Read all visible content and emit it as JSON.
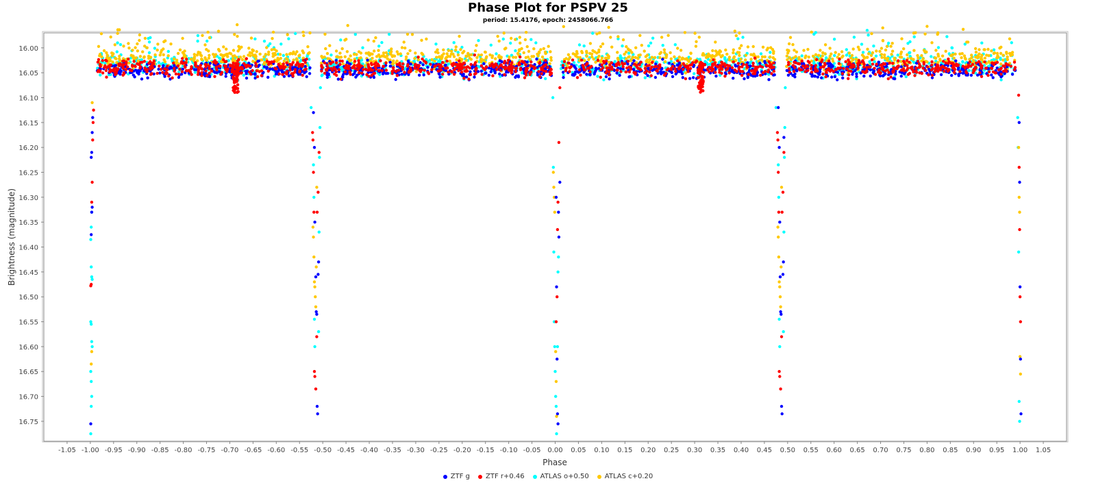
{
  "chart_data": {
    "type": "scatter",
    "title": "Phase Plot for PSPV 25",
    "subtitle": "period: 15.4176, epoch: 2458066.766",
    "xlabel": "Phase",
    "ylabel": "Brightness (magnitude)",
    "xlim": [
      -1.1,
      1.1
    ],
    "ylim": [
      15.97,
      16.79
    ],
    "y_inverted": true,
    "grid": false,
    "legend_position": "bottom",
    "x_ticks": [
      "-1.05",
      "-1.00",
      "-0.95",
      "-0.90",
      "-0.85",
      "-0.80",
      "-0.75",
      "-0.70",
      "-0.65",
      "-0.60",
      "-0.55",
      "-0.50",
      "-0.45",
      "-0.40",
      "-0.35",
      "-0.30",
      "-0.25",
      "-0.20",
      "-0.15",
      "-0.10",
      "-0.05",
      "0.00",
      "0.05",
      "0.10",
      "0.15",
      "0.20",
      "0.25",
      "0.30",
      "0.35",
      "0.40",
      "0.45",
      "0.50",
      "0.55",
      "0.60",
      "0.65",
      "0.70",
      "0.75",
      "0.80",
      "0.85",
      "0.90",
      "0.95",
      "1.00",
      "1.05"
    ],
    "y_ticks": [
      "16.00",
      "16.05",
      "16.10",
      "16.15",
      "16.20",
      "16.25",
      "16.30",
      "16.35",
      "16.40",
      "16.45",
      "16.50",
      "16.55",
      "16.60",
      "16.65",
      "16.70",
      "16.75"
    ],
    "series": [
      {
        "name": "ZTF g",
        "color": "#0000ff",
        "baseline": 16.045,
        "eclipse_points": [
          [
            -0.998,
            16.22
          ],
          [
            -0.997,
            16.21
          ],
          [
            -0.996,
            16.17
          ],
          [
            -0.995,
            16.14
          ],
          [
            -0.996,
            16.32
          ],
          [
            -0.997,
            16.33
          ],
          [
            -0.998,
            16.375
          ],
          [
            -0.999,
            16.755
          ],
          [
            -0.52,
            16.13
          ],
          [
            -0.518,
            16.2
          ],
          [
            -0.517,
            16.35
          ],
          [
            -0.515,
            16.46
          ],
          [
            -0.514,
            16.53
          ],
          [
            -0.513,
            16.535
          ],
          [
            -0.512,
            16.72
          ],
          [
            -0.511,
            16.735
          ],
          [
            -0.51,
            16.455
          ],
          [
            -0.509,
            16.43
          ],
          [
            0.002,
            16.3
          ],
          [
            0.003,
            16.48
          ],
          [
            0.004,
            16.625
          ],
          [
            0.005,
            16.735
          ],
          [
            0.006,
            16.755
          ],
          [
            0.007,
            16.33
          ],
          [
            0.008,
            16.38
          ],
          [
            0.01,
            16.27
          ],
          [
            0.48,
            16.12
          ],
          [
            0.482,
            16.2
          ],
          [
            0.483,
            16.35
          ],
          [
            0.484,
            16.46
          ],
          [
            0.485,
            16.53
          ],
          [
            0.486,
            16.535
          ],
          [
            0.487,
            16.72
          ],
          [
            0.488,
            16.735
          ],
          [
            0.49,
            16.455
          ],
          [
            0.491,
            16.43
          ],
          [
            0.492,
            16.18
          ],
          [
            0.998,
            16.15
          ],
          [
            0.999,
            16.27
          ],
          [
            1.0,
            16.48
          ],
          [
            1.001,
            16.625
          ],
          [
            1.002,
            16.735
          ]
        ]
      },
      {
        "name": "ZTF r+0.46",
        "color": "#ff0000",
        "baseline": 16.04,
        "eclipse_points": [
          [
            -0.993,
            16.125
          ],
          [
            -0.994,
            16.15
          ],
          [
            -0.995,
            16.185
          ],
          [
            -0.996,
            16.27
          ],
          [
            -0.997,
            16.31
          ],
          [
            -0.998,
            16.475
          ],
          [
            -0.999,
            16.478
          ],
          [
            -0.522,
            16.17
          ],
          [
            -0.521,
            16.185
          ],
          [
            -0.52,
            16.25
          ],
          [
            -0.519,
            16.33
          ],
          [
            -0.518,
            16.65
          ],
          [
            -0.517,
            16.66
          ],
          [
            -0.515,
            16.685
          ],
          [
            -0.513,
            16.58
          ],
          [
            -0.512,
            16.33
          ],
          [
            -0.51,
            16.29
          ],
          [
            -0.508,
            16.21
          ],
          [
            0.002,
            16.55
          ],
          [
            0.004,
            16.5
          ],
          [
            0.005,
            16.365
          ],
          [
            0.006,
            16.31
          ],
          [
            0.008,
            16.19
          ],
          [
            0.01,
            16.08
          ],
          [
            0.478,
            16.17
          ],
          [
            0.479,
            16.185
          ],
          [
            0.48,
            16.25
          ],
          [
            0.481,
            16.33
          ],
          [
            0.482,
            16.65
          ],
          [
            0.483,
            16.66
          ],
          [
            0.485,
            16.685
          ],
          [
            0.487,
            16.58
          ],
          [
            0.488,
            16.33
          ],
          [
            0.49,
            16.29
          ],
          [
            0.492,
            16.21
          ],
          [
            0.997,
            16.095
          ],
          [
            0.998,
            16.24
          ],
          [
            0.999,
            16.365
          ],
          [
            1.0,
            16.5
          ],
          [
            1.001,
            16.55
          ]
        ]
      },
      {
        "name": "ATLAS o+0.50",
        "color": "#00ffff",
        "baseline": 16.035,
        "eclipse_points": [
          [
            -0.997,
            16.33
          ],
          [
            -0.998,
            16.36
          ],
          [
            -0.999,
            16.385
          ],
          [
            -0.998,
            16.44
          ],
          [
            -0.997,
            16.46
          ],
          [
            -0.996,
            16.465
          ],
          [
            -0.999,
            16.55
          ],
          [
            -0.998,
            16.555
          ],
          [
            -0.997,
            16.59
          ],
          [
            -0.996,
            16.6
          ],
          [
            -0.999,
            16.65
          ],
          [
            -0.998,
            16.67
          ],
          [
            -0.997,
            16.7
          ],
          [
            -0.998,
            16.72
          ],
          [
            -0.999,
            16.775
          ],
          [
            -0.525,
            16.12
          ],
          [
            -0.52,
            16.235
          ],
          [
            -0.519,
            16.3
          ],
          [
            -0.518,
            16.545
          ],
          [
            -0.517,
            16.6
          ],
          [
            -0.508,
            16.37
          ],
          [
            -0.507,
            16.22
          ],
          [
            -0.506,
            16.16
          ],
          [
            -0.505,
            16.08
          ],
          [
            -0.509,
            16.57
          ],
          [
            -0.005,
            16.1
          ],
          [
            -0.004,
            16.24
          ],
          [
            -0.003,
            16.41
          ],
          [
            -0.002,
            16.55
          ],
          [
            -0.001,
            16.6
          ],
          [
            0.0,
            16.65
          ],
          [
            0.001,
            16.7
          ],
          [
            0.002,
            16.72
          ],
          [
            0.003,
            16.775
          ],
          [
            0.005,
            16.6
          ],
          [
            0.006,
            16.45
          ],
          [
            0.007,
            16.42
          ],
          [
            0.475,
            16.12
          ],
          [
            0.48,
            16.235
          ],
          [
            0.481,
            16.3
          ],
          [
            0.482,
            16.545
          ],
          [
            0.483,
            16.6
          ],
          [
            0.492,
            16.37
          ],
          [
            0.493,
            16.22
          ],
          [
            0.494,
            16.16
          ],
          [
            0.495,
            16.08
          ],
          [
            0.491,
            16.57
          ],
          [
            0.995,
            16.14
          ],
          [
            0.996,
            16.2
          ],
          [
            0.997,
            16.41
          ],
          [
            0.998,
            16.71
          ],
          [
            0.999,
            16.75
          ]
        ]
      },
      {
        "name": "ATLAS c+0.20",
        "color": "#ffc800",
        "baseline": 16.02,
        "eclipse_points": [
          [
            -0.996,
            16.11
          ],
          [
            -0.997,
            16.61
          ],
          [
            -0.998,
            16.635
          ],
          [
            -0.521,
            16.36
          ],
          [
            -0.52,
            16.38
          ],
          [
            -0.519,
            16.42
          ],
          [
            -0.518,
            16.47
          ],
          [
            -0.517,
            16.48
          ],
          [
            -0.516,
            16.5
          ],
          [
            -0.515,
            16.52
          ],
          [
            -0.514,
            16.44
          ],
          [
            -0.513,
            16.28
          ],
          [
            -0.004,
            16.25
          ],
          [
            -0.003,
            16.28
          ],
          [
            -0.002,
            16.3
          ],
          [
            -0.001,
            16.33
          ],
          [
            0.001,
            16.61
          ],
          [
            0.002,
            16.67
          ],
          [
            0.003,
            16.74
          ],
          [
            0.479,
            16.36
          ],
          [
            0.48,
            16.38
          ],
          [
            0.481,
            16.42
          ],
          [
            0.482,
            16.47
          ],
          [
            0.483,
            16.48
          ],
          [
            0.484,
            16.5
          ],
          [
            0.485,
            16.52
          ],
          [
            0.486,
            16.44
          ],
          [
            0.487,
            16.28
          ],
          [
            0.997,
            16.2
          ],
          [
            0.998,
            16.3
          ],
          [
            0.999,
            16.33
          ],
          [
            1.0,
            16.62
          ],
          [
            1.001,
            16.655
          ]
        ]
      }
    ]
  }
}
